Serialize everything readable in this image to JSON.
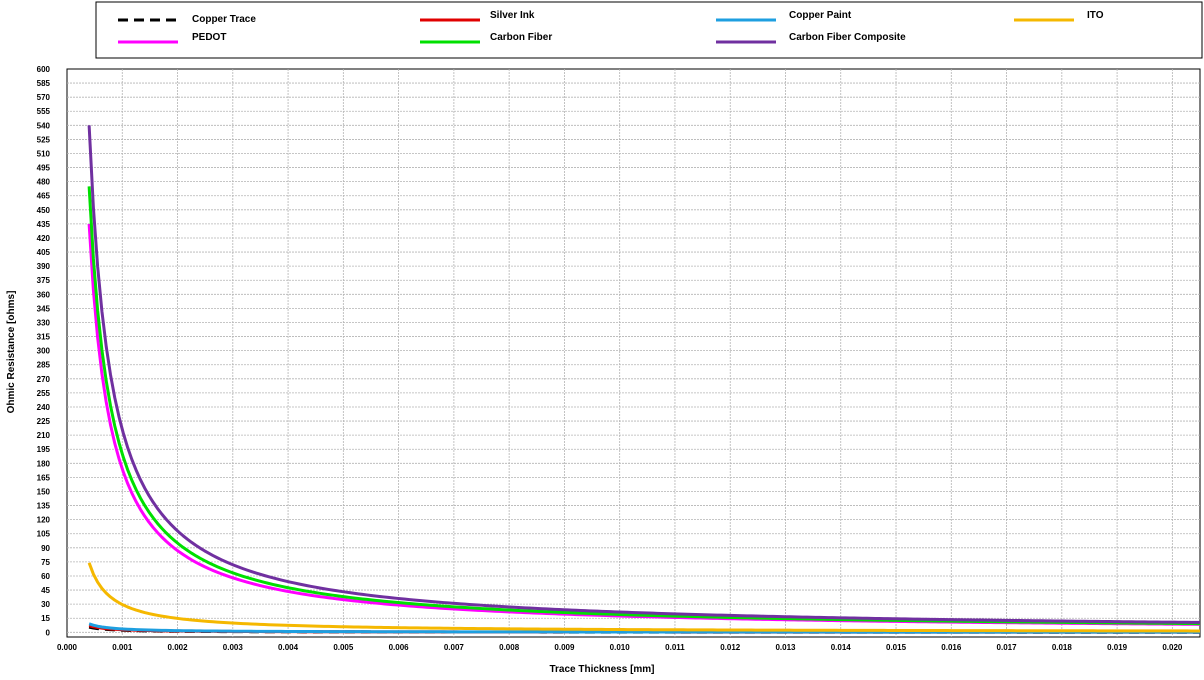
{
  "chart_data": {
    "type": "line",
    "title": "",
    "xlabel": "Trace Thickness [mm]",
    "ylabel": "Ohmic Resistance [ohms]",
    "xlim": [
      0.0,
      0.0205
    ],
    "ylim": [
      -5,
      600
    ],
    "x_ticks": [
      "0.000",
      "0.001",
      "0.002",
      "0.003",
      "0.004",
      "0.005",
      "0.006",
      "0.007",
      "0.008",
      "0.009",
      "0.010",
      "0.011",
      "0.012",
      "0.013",
      "0.014",
      "0.015",
      "0.016",
      "0.017",
      "0.018",
      "0.019",
      "0.020"
    ],
    "y_ticks": [
      "0",
      "15",
      "30",
      "45",
      "60",
      "75",
      "90",
      "105",
      "120",
      "135",
      "150",
      "165",
      "180",
      "195",
      "210",
      "225",
      "240",
      "255",
      "270",
      "285",
      "300",
      "315",
      "330",
      "345",
      "360",
      "375",
      "390",
      "405",
      "420",
      "435",
      "450",
      "465",
      "480",
      "495",
      "510",
      "525",
      "540",
      "555",
      "570",
      "585",
      "600"
    ],
    "grid": true,
    "legend_position": "top",
    "series": [
      {
        "name": "Copper Trace",
        "color": "#000000",
        "dashed": true,
        "k": 0.0022,
        "x": [
          0.0004,
          0.0007,
          0.001,
          0.002,
          0.005,
          0.01,
          0.015,
          0.0205
        ],
        "y": [
          5.5,
          3.1,
          2.2,
          1.1,
          0.4,
          0.2,
          0.1,
          0.1
        ]
      },
      {
        "name": "Silver Ink",
        "color": "#e00000",
        "dashed": false,
        "k": 0.0028,
        "x": [
          0.0004,
          0.0007,
          0.001,
          0.002,
          0.005,
          0.01,
          0.015,
          0.0205
        ],
        "y": [
          7.0,
          4.0,
          2.8,
          1.4,
          0.6,
          0.3,
          0.2,
          0.1
        ]
      },
      {
        "name": "Copper Paint",
        "color": "#1e9fe0",
        "dashed": false,
        "k": 0.0036,
        "x": [
          0.0004,
          0.0007,
          0.001,
          0.002,
          0.005,
          0.01,
          0.015,
          0.0205
        ],
        "y": [
          9.0,
          5.1,
          3.6,
          1.8,
          0.7,
          0.4,
          0.2,
          0.2
        ]
      },
      {
        "name": "ITO",
        "color": "#f5b800",
        "dashed": false,
        "k": 0.0296,
        "x": [
          0.0004,
          0.0006,
          0.0008,
          0.001,
          0.0015,
          0.002,
          0.003,
          0.005,
          0.008,
          0.012,
          0.016,
          0.0205
        ],
        "y": [
          74,
          49.3,
          37,
          29.6,
          19.7,
          14.8,
          9.9,
          5.9,
          3.7,
          2.5,
          1.9,
          1.4
        ]
      },
      {
        "name": "PEDOT",
        "color": "#ff00ff",
        "dashed": false,
        "k": 0.174,
        "x": [
          0.0004,
          0.0006,
          0.0008,
          0.001,
          0.0012,
          0.0015,
          0.002,
          0.0025,
          0.003,
          0.004,
          0.005,
          0.006,
          0.008,
          0.01,
          0.012,
          0.015,
          0.018,
          0.0205
        ],
        "y": [
          435,
          290,
          217.5,
          174,
          145,
          116,
          87,
          69.6,
          58,
          43.5,
          34.8,
          29,
          21.8,
          17.4,
          14.5,
          11.6,
          9.7,
          8.5
        ]
      },
      {
        "name": "Carbon Fiber",
        "color": "#00e000",
        "dashed": false,
        "k": 0.19,
        "x": [
          0.0004,
          0.0006,
          0.0008,
          0.001,
          0.0012,
          0.0015,
          0.002,
          0.0025,
          0.003,
          0.004,
          0.005,
          0.006,
          0.008,
          0.01,
          0.012,
          0.015,
          0.018,
          0.0205
        ],
        "y": [
          475,
          316.7,
          237.5,
          190,
          158.3,
          126.7,
          95,
          76,
          63.3,
          47.5,
          38,
          31.7,
          23.8,
          19,
          15.8,
          12.7,
          10.6,
          9.3
        ]
      },
      {
        "name": "Carbon Fiber Composite",
        "color": "#7030a0",
        "dashed": false,
        "k": 0.216,
        "x": [
          0.0004,
          0.0006,
          0.0008,
          0.001,
          0.0012,
          0.0015,
          0.002,
          0.0025,
          0.003,
          0.004,
          0.005,
          0.006,
          0.008,
          0.01,
          0.012,
          0.015,
          0.018,
          0.0205
        ],
        "y": [
          540,
          360,
          270,
          216,
          180,
          144,
          108,
          86.4,
          72,
          54,
          43.2,
          36,
          27,
          21.6,
          18,
          14.4,
          12,
          10.5
        ]
      }
    ]
  }
}
